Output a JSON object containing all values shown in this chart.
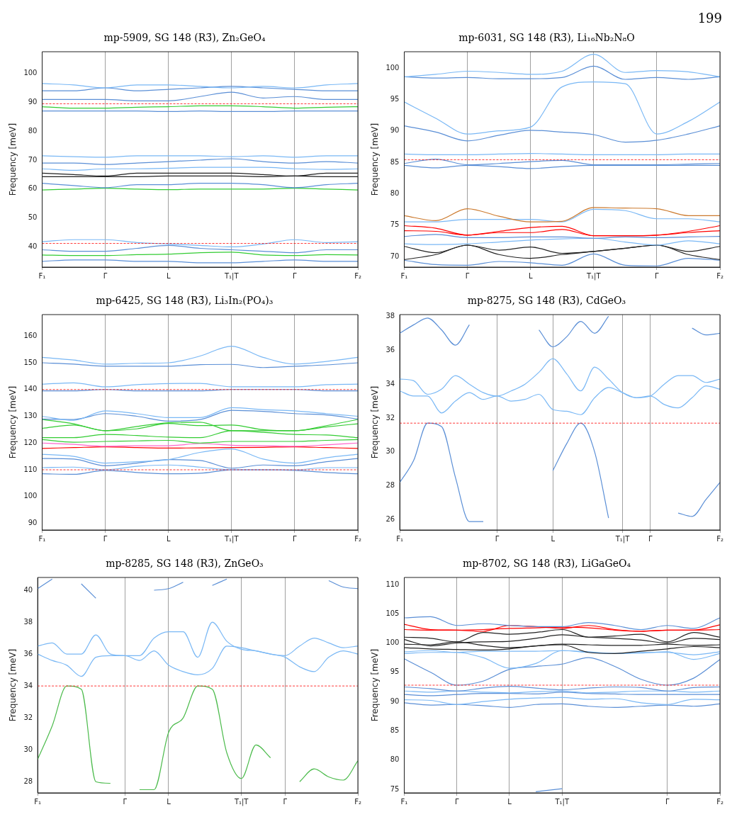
{
  "chart_data": [
    {
      "type": "line",
      "title": "mp-5909, SG 148 (R3̄), Zn₂GeO₄",
      "ylabel": "Frequency [meV]",
      "annotations": [
        "199"
      ],
      "grid": "x",
      "categories": [
        "F₁",
        null,
        "Γ",
        null,
        "L",
        null,
        "T₁|T",
        null,
        "Γ",
        null,
        "F₂"
      ],
      "ylim": [
        33,
        107.5
      ],
      "yticks": [
        40,
        50,
        60,
        70,
        80,
        90,
        100
      ],
      "ref_lines": [
        {
          "axis": "y",
          "value": 89.5,
          "color": "#ff0000",
          "line_style": "dashed"
        },
        {
          "axis": "y",
          "value": 41.2,
          "color": "#ff0000",
          "line_style": "dashed"
        }
      ],
      "series": [
        {
          "color": "#7ab8f5",
          "values": [
            96.5,
            96,
            95,
            96,
            96,
            95.5,
            95,
            95.5,
            95,
            96,
            96.5
          ]
        },
        {
          "color": "#5b8fd6",
          "values": [
            94,
            94,
            95,
            94,
            94.5,
            95,
            95.5,
            95,
            94.5,
            94,
            94
          ]
        },
        {
          "color": "#5b8fd6",
          "values": [
            91,
            91,
            91,
            90.5,
            90.5,
            92,
            93.5,
            91.5,
            92,
            91,
            91
          ]
        },
        {
          "color": "#33cc33",
          "values": [
            88.5,
            88,
            88,
            88.3,
            88.5,
            88.8,
            88.8,
            88.5,
            88,
            88.3,
            88.5
          ]
        },
        {
          "color": "#5b8fd6",
          "values": [
            87,
            87,
            87,
            87,
            86.8,
            87,
            86.8,
            86.8,
            87,
            87,
            87
          ]
        },
        {
          "color": "#7ab8f5",
          "values": [
            71.5,
            71.2,
            71,
            71.5,
            71.5,
            71.5,
            71.2,
            71.5,
            71,
            71.5,
            71.5
          ]
        },
        {
          "color": "#5b8fd6",
          "values": [
            69,
            69,
            68.5,
            69,
            69.5,
            70,
            70.5,
            69.5,
            69,
            69.5,
            69
          ]
        },
        {
          "color": "#7ab8f5",
          "values": [
            67,
            66.5,
            67,
            67,
            67.2,
            67.5,
            67.5,
            67.5,
            67,
            66.8,
            67
          ]
        },
        {
          "color": "#222222",
          "values": [
            65.5,
            65,
            64.5,
            65.5,
            65.5,
            65.5,
            65.5,
            65,
            64.5,
            65.5,
            65.5
          ]
        },
        {
          "color": "#222222",
          "values": [
            64.3,
            64.3,
            64.3,
            64.3,
            64.5,
            64.5,
            64.5,
            64.3,
            64.5,
            64.3,
            64.3
          ]
        },
        {
          "color": "#5b8fd6",
          "values": [
            62,
            61.2,
            60.5,
            61.5,
            61.5,
            62,
            62,
            61.5,
            60.5,
            61.5,
            62
          ]
        },
        {
          "color": "#33cc33",
          "values": [
            59.7,
            60,
            60.3,
            60,
            59.8,
            60,
            60,
            60,
            60.3,
            60,
            59.7
          ]
        },
        {
          "color": "#7ab8f5",
          "values": [
            41.8,
            42.5,
            42.5,
            41.5,
            41,
            40.5,
            40,
            41,
            42.5,
            41.5,
            41.8
          ]
        },
        {
          "color": "#5b8fd6",
          "values": [
            39,
            38.5,
            38.5,
            39.5,
            40.5,
            39.5,
            39,
            38.5,
            38,
            39,
            39
          ]
        },
        {
          "color": "#33cc33",
          "values": [
            37.2,
            37,
            37,
            37.3,
            37.5,
            38,
            38.2,
            37.2,
            37,
            37.3,
            37.2
          ]
        },
        {
          "color": "#5b8fd6",
          "values": [
            35,
            35.5,
            35.5,
            35,
            35,
            34.5,
            34.5,
            35,
            35.5,
            35,
            35
          ]
        }
      ]
    },
    {
      "type": "line",
      "title": "mp-6031, SG 148 (R3̄), Li₁₆Nb₂N₈O",
      "ylabel": "Frequency [meV]",
      "grid": "x",
      "categories": [
        "F₁",
        null,
        "Γ",
        null,
        "L",
        null,
        "T₁|T",
        null,
        "Γ",
        null,
        "F₂"
      ],
      "ylim": [
        68.3,
        102.6
      ],
      "yticks": [
        70,
        75,
        80,
        85,
        90,
        95,
        100
      ],
      "ref_lines": [
        {
          "axis": "y",
          "value": 85.4,
          "color": "#ff0000",
          "line_style": "dashed"
        }
      ],
      "series": [
        {
          "color": "#7ab8f5",
          "values": [
            98.6,
            99,
            99.5,
            99.3,
            99,
            99.5,
            102.2,
            99.3,
            99.6,
            99.4,
            98.6
          ]
        },
        {
          "color": "#5b8fd6",
          "values": [
            98.6,
            98.4,
            98.5,
            98.3,
            98.3,
            98.5,
            100.3,
            98.2,
            98.5,
            98.2,
            98.6
          ]
        },
        {
          "color": "#7ab8f5",
          "values": [
            94.6,
            92,
            89.5,
            90,
            90.6,
            97,
            97.8,
            97.5,
            89.5,
            91.5,
            94.6
          ]
        },
        {
          "color": "#5b8fd6",
          "values": [
            90.8,
            89.8,
            88.4,
            89.3,
            90.1,
            89.8,
            89.4,
            88.2,
            88.5,
            89.5,
            90.8
          ]
        },
        {
          "color": "#7ab8f5",
          "values": [
            86.3,
            86.2,
            86.2,
            86.3,
            86.4,
            86.3,
            86.2,
            86.2,
            86.2,
            86.3,
            86.3
          ]
        },
        {
          "color": "#5b8fd6",
          "values": [
            84.8,
            85.5,
            84.6,
            84.8,
            85.1,
            85.3,
            84.6,
            84.6,
            84.6,
            84.7,
            84.8
          ]
        },
        {
          "color": "#5b8fd6",
          "values": [
            84.5,
            84.1,
            84.5,
            84.3,
            84,
            84.3,
            84.5,
            84.5,
            84.5,
            84.5,
            84.5
          ]
        },
        {
          "color": "#cc7a2e",
          "values": [
            76.5,
            75.7,
            77.6,
            76.4,
            75.5,
            75.6,
            77.8,
            77.7,
            77.6,
            76.5,
            76.5
          ]
        },
        {
          "color": "#7ab8f5",
          "values": [
            75.5,
            75.5,
            75.9,
            75.9,
            75.9,
            75.5,
            77.5,
            77.3,
            76,
            76,
            75.5
          ]
        },
        {
          "color": "#ff0000",
          "values": [
            74.9,
            74.5,
            73.4,
            74,
            74.6,
            74.8,
            73.3,
            73.3,
            73.4,
            74,
            74.9
          ]
        },
        {
          "color": "#ff0000",
          "values": [
            74.1,
            74,
            73.4,
            73.8,
            73.8,
            74.3,
            73.3,
            73.3,
            73.4,
            73.8,
            74.1
          ]
        },
        {
          "color": "#5b8fd6",
          "values": [
            73.2,
            73.5,
            73,
            73,
            73.1,
            73.1,
            72.9,
            73.1,
            73,
            73.1,
            73.2
          ]
        },
        {
          "color": "#7ab8f5",
          "values": [
            72,
            71.9,
            72,
            72.3,
            72.6,
            72.8,
            72.9,
            72.3,
            71.8,
            72.5,
            72
          ]
        },
        {
          "color": "#222222",
          "values": [
            71.6,
            70.6,
            71.8,
            71,
            71.5,
            70.5,
            70.8,
            71.3,
            71.8,
            70.8,
            71.6
          ]
        },
        {
          "color": "#222222",
          "values": [
            69.5,
            70.3,
            71.8,
            70.3,
            69.7,
            70.3,
            70.8,
            71.3,
            71.8,
            70.3,
            69.5
          ]
        },
        {
          "color": "#5b8fd6",
          "values": [
            69.4,
            68.7,
            68.6,
            69.2,
            69,
            68.6,
            70.4,
            68.6,
            68.5,
            69.7,
            69.4
          ]
        }
      ]
    },
    {
      "type": "line",
      "title": "mp-6425, SG 148 (R3̄), Li₃In₂(PO₄)₃",
      "ylabel": "Frequency [meV]",
      "grid": "x",
      "categories": [
        "F₁",
        null,
        "Γ",
        null,
        "L",
        null,
        "T₁|T",
        null,
        "Γ",
        null,
        "F₂"
      ],
      "ylim": [
        87.5,
        168
      ],
      "yticks": [
        90,
        100,
        110,
        120,
        130,
        140,
        150,
        160
      ],
      "ref_lines": [
        {
          "axis": "y",
          "value": 140,
          "color": "#ff0000",
          "line_style": "dashed"
        },
        {
          "axis": "y",
          "value": 110,
          "color": "#ff0000",
          "line_style": "dashed"
        }
      ],
      "series": [
        {
          "color": "#7ab8f5",
          "values": [
            152,
            151,
            149.5,
            149.8,
            150,
            152.5,
            156.2,
            152,
            149.5,
            150.5,
            152
          ]
        },
        {
          "color": "#5b8fd6",
          "values": [
            150,
            149.5,
            148.7,
            148.7,
            148.7,
            149.3,
            149.4,
            148.2,
            148.7,
            149.2,
            150
          ]
        },
        {
          "color": "#7ab8f5",
          "values": [
            142,
            142.5,
            141,
            141.8,
            142.2,
            142.3,
            141,
            141,
            141,
            141.8,
            142
          ]
        },
        {
          "color": "#5b8fd6",
          "values": [
            139.5,
            139.5,
            140,
            139.5,
            139.5,
            139.5,
            140,
            140,
            140,
            139.5,
            139.5
          ]
        },
        {
          "color": "#7ab8f5",
          "values": [
            130,
            128.5,
            132,
            131,
            129.5,
            129.5,
            133.2,
            132.5,
            132,
            131,
            130
          ]
        },
        {
          "color": "#5b8fd6",
          "values": [
            129,
            128.8,
            131,
            130,
            128.2,
            128.8,
            132.2,
            131.8,
            131,
            130.5,
            129
          ]
        },
        {
          "color": "#33cc33",
          "values": [
            128.8,
            127.2,
            124.6,
            126.2,
            127.6,
            127.8,
            124.6,
            124.6,
            124.6,
            126.5,
            128.8
          ]
        },
        {
          "color": "#33cc33",
          "values": [
            125.5,
            126.7,
            124.6,
            125.3,
            127.3,
            126.5,
            126.7,
            125,
            124.6,
            126,
            127.2
          ]
        },
        {
          "color": "#33cc33",
          "values": [
            122,
            122,
            123.2,
            122.8,
            122.2,
            122,
            124.6,
            124,
            123.2,
            123,
            122
          ]
        },
        {
          "color": "#33cc33",
          "values": [
            121.3,
            120.3,
            120.6,
            120.8,
            121,
            120,
            120.6,
            120.6,
            120.6,
            121,
            121.3
          ]
        },
        {
          "color": "#ff66cc",
          "values": [
            120,
            119.5,
            118.8,
            119,
            119,
            119.8,
            119.2,
            119,
            118.8,
            119.3,
            120
          ]
        },
        {
          "color": "#ff0000",
          "values": [
            118,
            118.3,
            118.6,
            118.3,
            118.1,
            118.2,
            118.3,
            118.4,
            118.6,
            118.3,
            118
          ]
        },
        {
          "color": "#7ab8f5",
          "values": [
            115.8,
            115,
            112.5,
            113,
            113.8,
            116.5,
            117.8,
            114,
            112.5,
            114.5,
            115.8
          ]
        },
        {
          "color": "#5b8fd6",
          "values": [
            114.2,
            114,
            111.5,
            112.5,
            113.8,
            113.5,
            110.6,
            111.8,
            111.5,
            113,
            114.2
          ]
        },
        {
          "color": "#7ab8f5",
          "values": [
            110.8,
            111,
            110,
            111.3,
            111.8,
            111,
            110,
            110,
            110,
            110.8,
            110.8
          ]
        },
        {
          "color": "#5b8fd6",
          "values": [
            108.5,
            108.3,
            109.8,
            109,
            108.5,
            108.7,
            110,
            110,
            109.8,
            109,
            108.5
          ]
        }
      ]
    },
    {
      "type": "line",
      "title": "mp-8275, SG 148 (R3̄), CdGeO₃",
      "ylabel": "Frequency [meV]",
      "grid": "x",
      "categories": [
        "F₁",
        null,
        null,
        null,
        null,
        null,
        null,
        "Γ",
        null,
        null,
        null,
        "L",
        null,
        null,
        null,
        null,
        "T₁|T",
        null,
        "Γ",
        null,
        null,
        null,
        null,
        "F₂"
      ],
      "ylim": [
        25.4,
        38.1
      ],
      "yticks": [
        26,
        28,
        30,
        32,
        34,
        36,
        38
      ],
      "ref_lines": [
        {
          "axis": "y",
          "value": 31.7,
          "color": "#ff0000",
          "line_style": "dashed"
        }
      ],
      "series": [
        {
          "color": "#5b8fd6",
          "values": [
            37,
            37.5,
            37.9,
            37.2,
            36.3,
            37.5,
            null,
            null,
            null,
            null,
            37.2,
            36.2,
            36.8,
            37.7,
            37,
            38,
            null,
            null,
            null,
            null,
            null,
            37.3,
            36.9,
            37
          ]
        },
        {
          "color": "#7ab8f5",
          "values": [
            34.3,
            34.2,
            33.4,
            33.7,
            34.5,
            34,
            33.5,
            33.3,
            33.6,
            34,
            34.7,
            35.5,
            34.6,
            33.6,
            35,
            34.3,
            33.5,
            33.2,
            33.3,
            34,
            34.5,
            34.5,
            34.1,
            34.3
          ]
        },
        {
          "color": "#7ab8f5",
          "values": [
            33.6,
            33.3,
            33.3,
            32.3,
            33,
            33.5,
            33.1,
            33.3,
            33,
            33.1,
            33.4,
            32.5,
            32.4,
            32.2,
            33.2,
            33.8,
            33.5,
            33.2,
            33.3,
            32.8,
            32.6,
            33.2,
            33.9,
            33.7
          ]
        },
        {
          "color": "#5b8fd6",
          "values": [
            28.2,
            29.5,
            31.7,
            31.5,
            28.5,
            25.9,
            25.9,
            null,
            null,
            null,
            null,
            28.9,
            30.5,
            31.7,
            30,
            26.1,
            null,
            null,
            null,
            null,
            26.4,
            26.2,
            27.2,
            28.2
          ]
        }
      ]
    },
    {
      "type": "line",
      "title": "mp-8285, SG 148 (R3̄), ZnGeO₃",
      "ylabel": "Frequency [meV]",
      "grid": "x",
      "categories": [
        "F₁",
        null,
        null,
        null,
        null,
        null,
        "Γ",
        null,
        null,
        "L",
        null,
        null,
        null,
        null,
        "T₁|T",
        null,
        null,
        "Γ",
        null,
        null,
        null,
        null,
        "F₂"
      ],
      "ylim": [
        27.3,
        40.8
      ],
      "yticks": [
        28,
        30,
        32,
        34,
        36,
        38,
        40
      ],
      "ref_lines": [
        {
          "axis": "y",
          "value": 34,
          "color": "#ff0000",
          "line_style": "dashed"
        }
      ],
      "series": [
        {
          "color": "#5b8fd6",
          "values": [
            40.1,
            40.7,
            null,
            40.4,
            39.5,
            null,
            null,
            null,
            40,
            40.1,
            40.5,
            null,
            40.3,
            40.7,
            null,
            null,
            null,
            null,
            null,
            null,
            40.6,
            40.2,
            40.1
          ]
        },
        {
          "color": "#7ab8f5",
          "values": [
            36.5,
            36.7,
            36,
            36,
            37.2,
            36,
            35.9,
            35.9,
            37,
            37.4,
            37.4,
            35.8,
            38,
            36.8,
            36.3,
            36.2,
            36,
            35.9,
            36.5,
            37,
            36.7,
            36.4,
            36.5
          ]
        },
        {
          "color": "#7ab8f5",
          "values": [
            36,
            35.6,
            35.3,
            34.6,
            35.8,
            35.9,
            35.9,
            35.6,
            36.2,
            35.3,
            34.9,
            34.7,
            35.1,
            36.5,
            36.4,
            36.2,
            36,
            35.8,
            35.2,
            34.9,
            35.8,
            36.2,
            36
          ]
        },
        {
          "color": "#4cbb4c",
          "values": [
            29.4,
            31.5,
            34,
            33.8,
            28,
            27.9,
            null,
            27.5,
            27.5,
            31.1,
            32,
            34,
            33.8,
            29.8,
            28.2,
            30.3,
            29.5,
            null,
            28,
            28.8,
            28.3,
            28.1,
            29.3
          ]
        }
      ]
    },
    {
      "type": "line",
      "title": "mp-8702, SG 148 (R3̄), LiGaGeO₄",
      "ylabel": "Frequency [meV]",
      "grid": "x",
      "categories": [
        "F₁",
        null,
        "Γ",
        null,
        "L",
        null,
        "T₁|T",
        null,
        null,
        null,
        "Γ",
        null,
        "F₂"
      ],
      "ylim": [
        74.4,
        111.2
      ],
      "yticks": [
        75,
        80,
        85,
        90,
        95,
        100,
        105,
        110
      ],
      "ref_lines": [
        {
          "axis": "y",
          "value": 92.8,
          "color": "#ff0000",
          "line_style": "dashed"
        }
      ],
      "series": [
        {
          "color": "#5b8fd6",
          "values": [
            104.3,
            104.5,
            103,
            103.3,
            103,
            102.8,
            102.8,
            103.5,
            103,
            102.3,
            103,
            102.5,
            104.3
          ]
        },
        {
          "color": "#ff0000",
          "values": [
            103.2,
            102.3,
            102.2,
            102,
            103,
            102.8,
            102.5,
            103,
            102.3,
            102,
            102.2,
            102.2,
            103.1
          ]
        },
        {
          "color": "#ff0000",
          "values": [
            102.3,
            102.2,
            102.2,
            102.3,
            102.5,
            102.6,
            102.7,
            102.6,
            102.2,
            102,
            102.2,
            102.2,
            102.3
          ]
        },
        {
          "color": "#222222",
          "values": [
            101,
            100.8,
            100.2,
            101.8,
            101.5,
            101.8,
            102.3,
            101,
            101.2,
            101.5,
            100.2,
            101.8,
            101
          ]
        },
        {
          "color": "#222222",
          "values": [
            100.6,
            99.5,
            100,
            100.2,
            100.3,
            100.8,
            101.4,
            101,
            100.8,
            100.5,
            100,
            100.8,
            100.6
          ]
        },
        {
          "color": "#222222",
          "values": [
            99.8,
            99.7,
            100.2,
            99.6,
            99.2,
            99.5,
            99.8,
            99.7,
            99.6,
            99.6,
            99.8,
            99.6,
            99.7
          ]
        },
        {
          "color": "#222222",
          "values": [
            99.2,
            99,
            98.9,
            98.8,
            99,
            99.5,
            99.7,
            98.4,
            98.2,
            98.6,
            99,
            99.4,
            99.2
          ]
        },
        {
          "color": "#7ab8f5",
          "values": [
            98.5,
            98.7,
            98.4,
            98.6,
            98.6,
            98.6,
            98.7,
            98.5,
            98.2,
            98.4,
            98.4,
            98,
            98.5
          ]
        },
        {
          "color": "#7ab8f5",
          "values": [
            98.2,
            98.4,
            98.4,
            97.5,
            95.7,
            96.5,
            98.7,
            98.4,
            98.2,
            98.3,
            98.5,
            97.2,
            98.2
          ]
        },
        {
          "color": "#5b8fd6",
          "values": [
            97.3,
            95,
            92.8,
            93.5,
            95.5,
            96,
            96.4,
            97.5,
            96,
            93.8,
            92.8,
            94,
            97.2
          ]
        },
        {
          "color": "#5b8fd6",
          "values": [
            92.5,
            92.2,
            91.8,
            92.3,
            92.6,
            92.3,
            92,
            92.3,
            92.5,
            92.4,
            91.8,
            92.4,
            92.5
          ]
        },
        {
          "color": "#7ab8f5",
          "values": [
            91.8,
            91.6,
            91.8,
            91.6,
            91.5,
            91.7,
            91.8,
            91.5,
            91.6,
            91.8,
            91.8,
            91.6,
            91.8
          ]
        },
        {
          "color": "#5b8fd6",
          "values": [
            91.2,
            91,
            91.2,
            91.4,
            91.4,
            91.3,
            91.6,
            91.4,
            91.3,
            91.2,
            91.2,
            91.2,
            91.2
          ]
        },
        {
          "color": "#7ab8f5",
          "values": [
            90.3,
            90.2,
            89.5,
            90,
            90.4,
            90.6,
            90.7,
            90.4,
            90.5,
            89.8,
            89.5,
            90.4,
            90.3
          ]
        },
        {
          "color": "#5b8fd6",
          "values": [
            89.8,
            89.4,
            89.5,
            89.3,
            89,
            89.5,
            89.6,
            89.2,
            89,
            89.2,
            89.4,
            89.2,
            89.6
          ]
        },
        {
          "color": "#5b8fd6",
          "values": [
            null,
            null,
            null,
            null,
            null,
            74.6,
            75.1,
            null,
            null,
            null,
            null,
            null,
            null
          ]
        }
      ]
    }
  ]
}
